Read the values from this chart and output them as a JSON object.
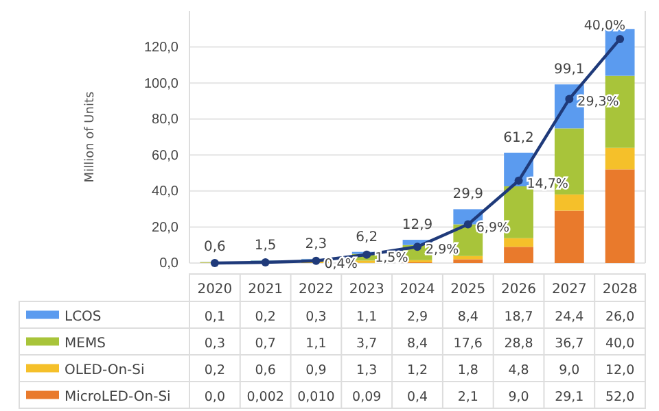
{
  "chart_data": {
    "type": "bar",
    "stacked": true,
    "ylabel": "Million of Units",
    "categories": [
      "2020",
      "2021",
      "2022",
      "2023",
      "2024",
      "2025",
      "2026",
      "2027",
      "2028"
    ],
    "series": [
      {
        "name": "MicroLED-On-Si",
        "color": "#e97a2c",
        "values": [
          0.0,
          0.002,
          0.01,
          0.09,
          0.4,
          2.1,
          9.0,
          29.1,
          52.0
        ],
        "value_labels": [
          "0,0",
          "0,002",
          "0,010",
          "0,09",
          "0,4",
          "2,1",
          "9,0",
          "29,1",
          "52,0"
        ]
      },
      {
        "name": "OLED-On-Si",
        "color": "#f5c02a",
        "values": [
          0.2,
          0.6,
          0.9,
          1.3,
          1.2,
          1.8,
          4.8,
          9.0,
          12.0
        ],
        "value_labels": [
          "0,2",
          "0,6",
          "0,9",
          "1,3",
          "1,2",
          "1,8",
          "4,8",
          "9,0",
          "12,0"
        ]
      },
      {
        "name": "MEMS",
        "color": "#a8c43a",
        "values": [
          0.3,
          0.7,
          1.1,
          3.7,
          8.4,
          17.6,
          28.8,
          36.7,
          40.0
        ],
        "value_labels": [
          "0,3",
          "0,7",
          "1,1",
          "3,7",
          "8,4",
          "17,6",
          "28,8",
          "36,7",
          "40,0"
        ]
      },
      {
        "name": "LCOS",
        "color": "#5b9bef",
        "values": [
          0.1,
          0.2,
          0.3,
          1.1,
          2.9,
          8.4,
          18.7,
          24.4,
          26.0
        ],
        "value_labels": [
          "0,1",
          "0,2",
          "0,3",
          "1,1",
          "2,9",
          "8,4",
          "18,7",
          "24,4",
          "26,0"
        ]
      },
      {
        "type": "line",
        "axis": "y2",
        "color": "#1f3a7a",
        "marker": "circle",
        "values": [
          0.0,
          0.13,
          0.4,
          1.5,
          2.9,
          6.9,
          14.7,
          29.3,
          40.0
        ],
        "value_labels": [
          null,
          null,
          "0,4%",
          "1,5%",
          "2,9%",
          "6,9%",
          "14,7%",
          "29,3%",
          "40,0%"
        ]
      }
    ],
    "totals": [
      "0,6",
      "1,5",
      "2,3",
      "6,2",
      "12,9",
      "29,9",
      "61,2",
      "99,1",
      null
    ],
    "data_labels": true,
    "ylim": [
      0,
      140
    ],
    "yticks": [
      {
        "value": 0,
        "label": "0,0"
      },
      {
        "value": 20,
        "label": "20,0"
      },
      {
        "value": 40,
        "label": "40,0"
      },
      {
        "value": 60,
        "label": "60,0"
      },
      {
        "value": 80,
        "label": "80,0"
      },
      {
        "value": 100,
        "label": "100,0"
      },
      {
        "value": 120,
        "label": "120,0"
      }
    ],
    "y2lim": [
      0,
      45
    ],
    "grid": "y",
    "legend": "bottom"
  }
}
